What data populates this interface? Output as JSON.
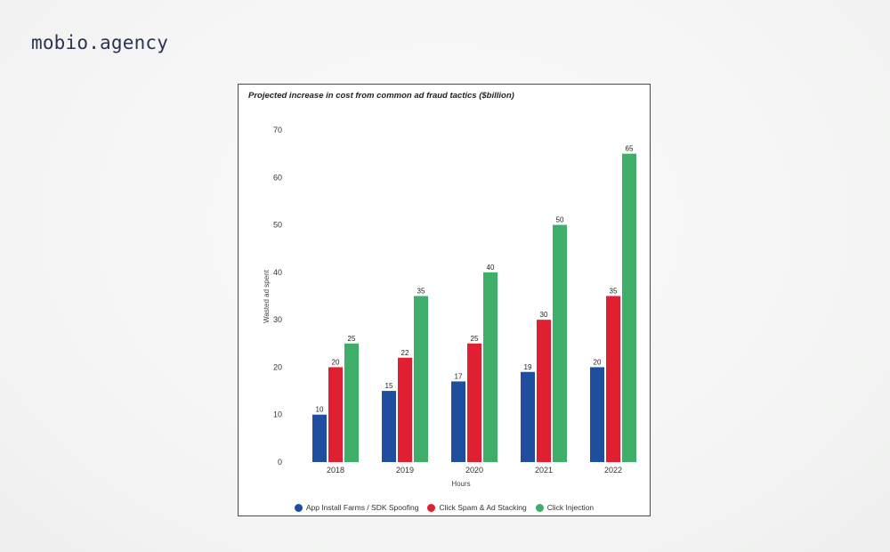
{
  "brand": {
    "name": "mobio.agency"
  },
  "chart_data": {
    "type": "bar",
    "title": "Projected increase in cost from common ad fraud tactics ($billion)",
    "xlabel": "Hours",
    "ylabel": "Wasted ad spent",
    "ylim": [
      0,
      70
    ],
    "yticks": [
      0,
      10,
      20,
      30,
      40,
      50,
      60,
      70
    ],
    "grid": false,
    "legend_position": "bottom",
    "categories": [
      "2018",
      "2019",
      "2020",
      "2021",
      "2022"
    ],
    "series": [
      {
        "name": "App Install Farms / SDK Spoofing",
        "color": "#1f4e9e",
        "values": [
          10,
          15,
          17,
          19,
          20
        ]
      },
      {
        "name": "Click Spam & Ad Stacking",
        "color": "#e02030",
        "values": [
          20,
          22,
          25,
          30,
          35
        ]
      },
      {
        "name": "Click Injection",
        "color": "#3fae68",
        "values": [
          25,
          35,
          40,
          50,
          65
        ]
      }
    ]
  }
}
